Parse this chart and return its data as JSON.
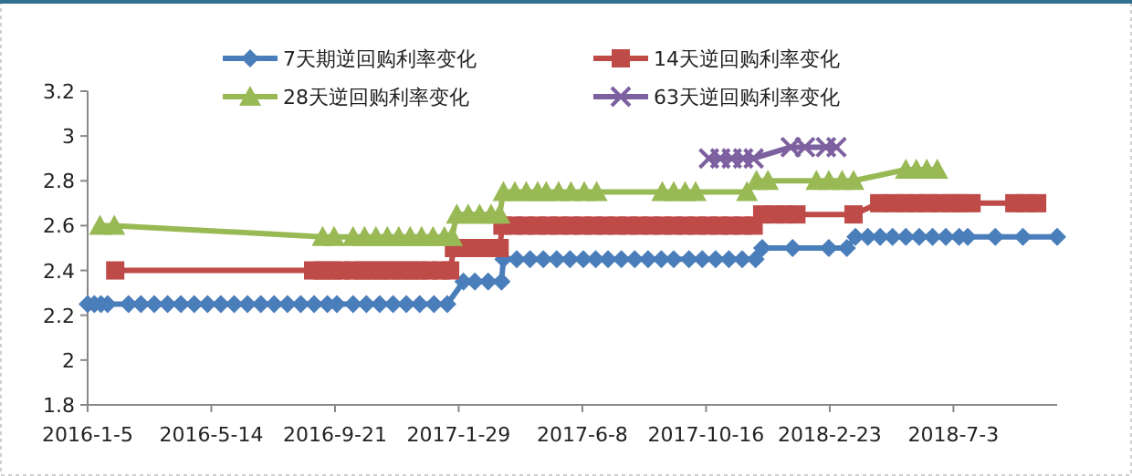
{
  "chart_data": {
    "type": "line",
    "legend": "top",
    "xlim": [
      "2016-01-05",
      "2018-10-20"
    ],
    "xticks": [
      {
        "value": "2016-01-05",
        "label": "2016-1-5"
      },
      {
        "value": "2016-05-14",
        "label": "2016-5-14"
      },
      {
        "value": "2016-09-21",
        "label": "2016-9-21"
      },
      {
        "value": "2017-01-29",
        "label": "2017-1-29"
      },
      {
        "value": "2017-06-08",
        "label": "2017-6-8"
      },
      {
        "value": "2017-10-16",
        "label": "2017-10-16"
      },
      {
        "value": "2018-02-23",
        "label": "2018-2-23"
      },
      {
        "value": "2018-07-03",
        "label": "2018-7-3"
      }
    ],
    "ylim": [
      1.8,
      3.2
    ],
    "yticks": [
      1.8,
      2,
      2.2,
      2.4,
      2.6,
      2.8,
      3,
      3.2
    ],
    "series": [
      {
        "name": "7天期逆回购利率变化",
        "color": "#4a7ebb",
        "marker": "diamond",
        "x": [
          "2016-01-05",
          "2016-01-12",
          "2016-01-19",
          "2016-01-26",
          "2016-02-17",
          "2016-03-01",
          "2016-03-15",
          "2016-03-29",
          "2016-04-12",
          "2016-04-26",
          "2016-05-10",
          "2016-05-24",
          "2016-06-07",
          "2016-06-21",
          "2016-07-05",
          "2016-07-19",
          "2016-08-02",
          "2016-08-16",
          "2016-08-30",
          "2016-09-13",
          "2016-09-23",
          "2016-10-10",
          "2016-10-24",
          "2016-11-07",
          "2016-11-21",
          "2016-12-05",
          "2016-12-19",
          "2017-01-03",
          "2017-01-17",
          "2017-02-03",
          "2017-02-15",
          "2017-03-01",
          "2017-03-15",
          "2017-03-17",
          "2017-03-31",
          "2017-04-14",
          "2017-04-28",
          "2017-05-12",
          "2017-05-26",
          "2017-06-09",
          "2017-06-22",
          "2017-07-05",
          "2017-07-19",
          "2017-08-02",
          "2017-08-16",
          "2017-08-30",
          "2017-09-12",
          "2017-09-28",
          "2017-10-12",
          "2017-10-26",
          "2017-11-09",
          "2017-11-23",
          "2017-12-07",
          "2017-12-14",
          "2018-01-15",
          "2018-02-22",
          "2018-03-13",
          "2018-03-22",
          "2018-04-04",
          "2018-04-17",
          "2018-04-30",
          "2018-05-14",
          "2018-05-28",
          "2018-06-11",
          "2018-06-25",
          "2018-07-09",
          "2018-07-18",
          "2018-08-16",
          "2018-09-14",
          "2018-10-20"
        ],
        "values": [
          2.25,
          2.25,
          2.25,
          2.25,
          2.25,
          2.25,
          2.25,
          2.25,
          2.25,
          2.25,
          2.25,
          2.25,
          2.25,
          2.25,
          2.25,
          2.25,
          2.25,
          2.25,
          2.25,
          2.25,
          2.25,
          2.25,
          2.25,
          2.25,
          2.25,
          2.25,
          2.25,
          2.25,
          2.25,
          2.35,
          2.35,
          2.35,
          2.35,
          2.45,
          2.45,
          2.45,
          2.45,
          2.45,
          2.45,
          2.45,
          2.45,
          2.45,
          2.45,
          2.45,
          2.45,
          2.45,
          2.45,
          2.45,
          2.45,
          2.45,
          2.45,
          2.45,
          2.45,
          2.5,
          2.5,
          2.5,
          2.5,
          2.55,
          2.55,
          2.55,
          2.55,
          2.55,
          2.55,
          2.55,
          2.55,
          2.55,
          2.55,
          2.55,
          2.55,
          2.55
        ]
      },
      {
        "name": "14天逆回购利率变化",
        "color": "#be4b48",
        "marker": "square",
        "x": [
          "2016-02-03",
          "2016-08-29",
          "2016-09-08",
          "2016-09-18",
          "2016-09-28",
          "2016-10-10",
          "2016-10-20",
          "2016-10-30",
          "2016-11-09",
          "2016-11-19",
          "2016-11-29",
          "2016-12-09",
          "2016-12-19",
          "2016-12-29",
          "2017-01-10",
          "2017-01-20",
          "2017-01-24",
          "2017-02-05",
          "2017-02-17",
          "2017-03-01",
          "2017-03-13",
          "2017-03-16",
          "2017-03-28",
          "2017-04-09",
          "2017-04-21",
          "2017-05-03",
          "2017-05-15",
          "2017-05-27",
          "2017-06-08",
          "2017-06-20",
          "2017-07-02",
          "2017-07-14",
          "2017-07-26",
          "2017-08-07",
          "2017-08-19",
          "2017-08-31",
          "2017-09-12",
          "2017-09-24",
          "2017-10-06",
          "2017-10-18",
          "2017-10-30",
          "2017-11-11",
          "2017-11-23",
          "2017-12-05",
          "2017-12-14",
          "2017-12-26",
          "2018-01-07",
          "2018-01-19",
          "2018-03-20",
          "2018-04-16",
          "2018-05-01",
          "2018-05-13",
          "2018-05-25",
          "2018-06-06",
          "2018-06-18",
          "2018-07-01",
          "2018-07-10",
          "2018-07-22",
          "2018-09-05",
          "2018-09-17",
          "2018-09-29"
        ],
        "values": [
          2.4,
          2.4,
          2.4,
          2.4,
          2.4,
          2.4,
          2.4,
          2.4,
          2.4,
          2.4,
          2.4,
          2.4,
          2.4,
          2.4,
          2.4,
          2.4,
          2.5,
          2.5,
          2.5,
          2.5,
          2.5,
          2.6,
          2.6,
          2.6,
          2.6,
          2.6,
          2.6,
          2.6,
          2.6,
          2.6,
          2.6,
          2.6,
          2.6,
          2.6,
          2.6,
          2.6,
          2.6,
          2.6,
          2.6,
          2.6,
          2.6,
          2.6,
          2.6,
          2.6,
          2.65,
          2.65,
          2.65,
          2.65,
          2.65,
          2.7,
          2.7,
          2.7,
          2.7,
          2.7,
          2.7,
          2.7,
          2.7,
          2.7,
          2.7,
          2.7,
          2.7
        ]
      },
      {
        "name": "28天逆回购利率变化",
        "color": "#98b954",
        "marker": "triangle",
        "x": [
          "2016-01-18",
          "2016-02-02",
          "2016-09-08",
          "2016-09-20",
          "2016-10-10",
          "2016-10-22",
          "2016-11-03",
          "2016-11-15",
          "2016-11-27",
          "2016-12-09",
          "2016-12-21",
          "2017-01-02",
          "2017-01-14",
          "2017-01-22",
          "2017-01-27",
          "2017-02-08",
          "2017-02-20",
          "2017-03-04",
          "2017-03-13",
          "2017-03-17",
          "2017-03-29",
          "2017-04-10",
          "2017-04-22",
          "2017-05-01",
          "2017-05-14",
          "2017-05-27",
          "2017-06-10",
          "2017-06-23",
          "2017-08-31",
          "2017-09-12",
          "2017-09-24",
          "2017-10-05",
          "2017-11-28",
          "2017-12-08",
          "2017-12-20",
          "2018-02-09",
          "2018-02-22",
          "2018-03-08",
          "2018-03-20",
          "2018-05-14",
          "2018-05-25",
          "2018-06-05",
          "2018-06-16"
        ],
        "values": [
          2.6,
          2.6,
          2.55,
          2.55,
          2.55,
          2.55,
          2.55,
          2.55,
          2.55,
          2.55,
          2.55,
          2.55,
          2.55,
          2.55,
          2.65,
          2.65,
          2.65,
          2.65,
          2.65,
          2.75,
          2.75,
          2.75,
          2.75,
          2.75,
          2.75,
          2.75,
          2.75,
          2.75,
          2.75,
          2.75,
          2.75,
          2.75,
          2.75,
          2.8,
          2.8,
          2.8,
          2.8,
          2.8,
          2.8,
          2.85,
          2.85,
          2.85,
          2.85
        ]
      },
      {
        "name": "63天逆回购利率变化",
        "color": "#7d60a0",
        "marker": "cross",
        "x": [
          "2017-10-19",
          "2017-10-31",
          "2017-11-12",
          "2017-11-24",
          "2017-12-05",
          "2018-01-13",
          "2018-01-28",
          "2018-02-19",
          "2018-03-02"
        ],
        "values": [
          2.9,
          2.9,
          2.9,
          2.9,
          2.9,
          2.95,
          2.95,
          2.95,
          2.95
        ]
      }
    ]
  }
}
